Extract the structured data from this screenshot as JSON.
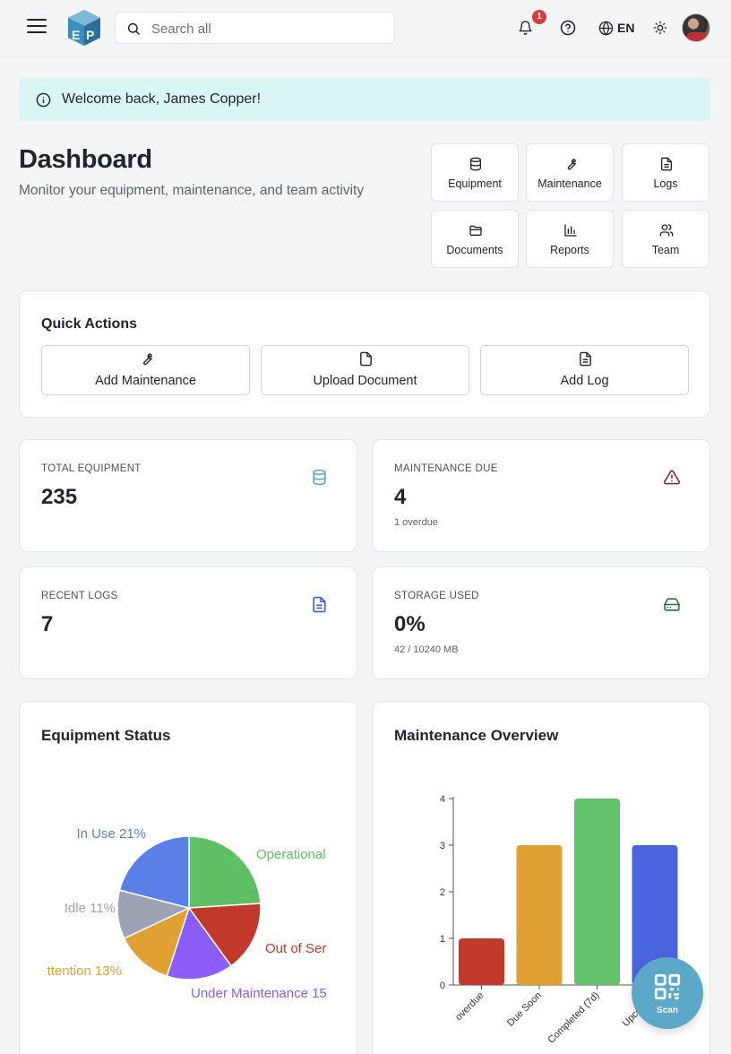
{
  "topbar": {
    "search_placeholder": "Search all",
    "notification_count": "1",
    "language": "EN"
  },
  "welcome": {
    "message": "Welcome back, James Copper!"
  },
  "header": {
    "title": "Dashboard",
    "subtitle": "Monitor your equipment, maintenance, and team activity"
  },
  "nav_tiles": [
    {
      "label": "Equipment",
      "icon": "database-icon"
    },
    {
      "label": "Maintenance",
      "icon": "wrench-icon"
    },
    {
      "label": "Logs",
      "icon": "file-text-icon"
    },
    {
      "label": "Documents",
      "icon": "folder-icon"
    },
    {
      "label": "Reports",
      "icon": "bar-chart-icon"
    },
    {
      "label": "Team",
      "icon": "users-icon"
    }
  ],
  "quick_actions": {
    "title": "Quick Actions",
    "buttons": [
      {
        "label": "Add Maintenance",
        "icon": "wrench-icon"
      },
      {
        "label": "Upload Document",
        "icon": "file-icon"
      },
      {
        "label": "Add Log",
        "icon": "file-text-icon"
      }
    ]
  },
  "stats": [
    {
      "label": "TOTAL EQUIPMENT",
      "value": "235",
      "sub": "",
      "icon": "database-icon",
      "icon_color": "#5ca8c8"
    },
    {
      "label": "MAINTENANCE DUE",
      "value": "4",
      "sub": "1 overdue",
      "icon": "alert-triangle-icon",
      "icon_color": "#7a2d2d"
    },
    {
      "label": "RECENT LOGS",
      "value": "7",
      "sub": "",
      "icon": "file-text-icon",
      "icon_color": "#3b5bdb"
    },
    {
      "label": "STORAGE USED",
      "value": "0%",
      "sub": "42 / 10240 MB",
      "icon": "hard-drive-icon",
      "icon_color": "#2f6b3a"
    }
  ],
  "charts": {
    "equipment_status_title": "Equipment Status",
    "maintenance_overview_title": "Maintenance Overview"
  },
  "chart_data": [
    {
      "type": "pie",
      "title": "Equipment Status",
      "slices": [
        {
          "label": "Operational",
          "percent": 24,
          "color": "#5fbf64"
        },
        {
          "label": "Out of Service",
          "percent": 16,
          "color": "#c0392b"
        },
        {
          "label": "Under Maintenance",
          "percent": 15,
          "color": "#8b5cf6"
        },
        {
          "label": "Needs Attention",
          "percent": 13,
          "color": "#e0a032"
        },
        {
          "label": "Idle",
          "percent": 11,
          "color": "#9ca3b4"
        },
        {
          "label": "In Use",
          "percent": 21,
          "color": "#5b7fe8"
        }
      ],
      "visible_labels": [
        "Operational",
        "Out of Ser",
        "Under Maintenance 15",
        "ttention 13%",
        "Idle 11%",
        "In Use 21%"
      ]
    },
    {
      "type": "bar",
      "title": "Maintenance Overview",
      "categories": [
        "overdue",
        "Due Soon",
        "Completed (7d)",
        "Upcoming"
      ],
      "values": [
        1,
        3,
        4,
        3
      ],
      "colors": [
        "#c0392b",
        "#e0a032",
        "#64c36a",
        "#4a64e0"
      ],
      "ylim": [
        0,
        4
      ],
      "yticks": [
        0,
        1,
        2,
        3,
        4
      ]
    }
  ],
  "fab": {
    "label": "Scan"
  }
}
